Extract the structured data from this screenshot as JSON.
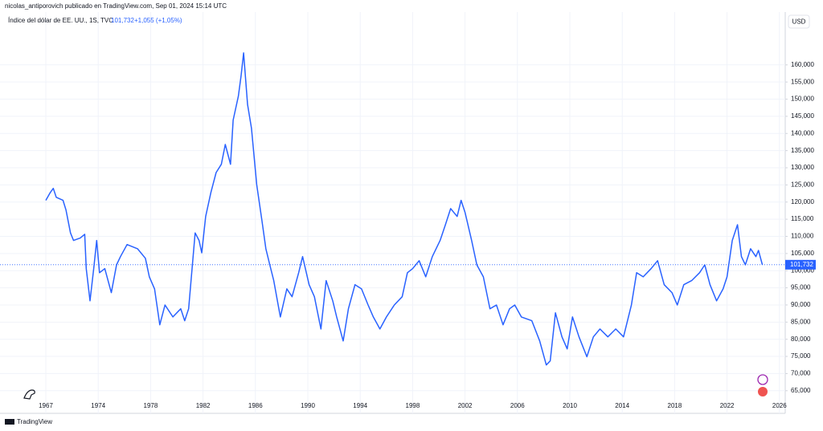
{
  "header": "nicolas_antiporovich publicado en TradingView.com, Sep 01, 2024 15:14 UTC",
  "footer": "TradingView",
  "chart_data": {
    "type": "line",
    "currency": "USD",
    "change": "+1,055 (+1,05%)",
    "last_value": {
      "value": 101.732,
      "label": "101,732"
    },
    "x": [
      1967.0,
      1967.6,
      1968.0,
      1968.4,
      1969.3,
      1969.7,
      1970.3,
      1970.7,
      1971.6,
      1972.2,
      1972.4,
      1972.9,
      1973.4,
      1973.8,
      1974.1,
      1974.5,
      1975.0,
      1975.4,
      1975.7,
      1976.2,
      1977.0,
      1977.6,
      1977.9,
      1978.3,
      1978.7,
      1979.1,
      1979.7,
      1980.3,
      1980.6,
      1980.9,
      1981.4,
      1981.7,
      1981.9,
      1982.2,
      1982.6,
      1983.0,
      1983.4,
      1983.7,
      1984.1,
      1984.3,
      1984.7,
      1984.9,
      1985.1,
      1985.4,
      1985.7,
      1986.1,
      1986.5,
      1986.8,
      1987.1,
      1987.4,
      1987.9,
      1988.4,
      1988.8,
      1989.3,
      1989.6,
      1990.1,
      1990.5,
      1991.0,
      1991.4,
      1991.9,
      1992.2,
      1992.7,
      1993.1,
      1993.6,
      1994.1,
      1994.6,
      1995.0,
      1995.5,
      1996.0,
      1996.6,
      1997.2,
      1997.6,
      1998.0,
      1998.5,
      1999.0,
      1999.5,
      2000.1,
      2000.5,
      2000.9,
      2001.4,
      2001.7,
      2002.0,
      2002.5,
      2002.9,
      2003.4,
      2003.9,
      2004.4,
      2004.9,
      2005.4,
      2005.8,
      2006.3,
      2007.1,
      2007.7,
      2008.2,
      2008.5,
      2008.9,
      2009.4,
      2009.8,
      2010.2,
      2010.7,
      2011.3,
      2011.8,
      2012.3,
      2012.9,
      2013.5,
      2014.1,
      2014.7,
      2015.1,
      2015.6,
      2016.2,
      2016.7,
      2017.2,
      2017.8,
      2018.2,
      2018.7,
      2019.3,
      2019.9,
      2020.3,
      2020.7,
      2021.2,
      2021.7,
      2022.0,
      2022.4,
      2022.8,
      2023.1,
      2023.4,
      2023.8,
      2024.2,
      2024.4,
      2024.7
    ],
    "series": [
      {
        "name": "Índice del dólar de EE. UU., 1S, TVC",
        "color": "#2962ff",
        "values": [
          120.5,
          122.8,
          124,
          121.4,
          120.5,
          117.7,
          111,
          108.8,
          109.5,
          110.6,
          100.6,
          91.2,
          100.6,
          108.8,
          99.4,
          100.6,
          93.6,
          101.7,
          104.1,
          107.6,
          106.4,
          103.6,
          98.2,
          94.7,
          84.2,
          90,
          86.5,
          88.9,
          85.4,
          88.9,
          111,
          108.8,
          105.2,
          115.8,
          122.8,
          128.6,
          131,
          136.8,
          131,
          143.9,
          150.9,
          156.7,
          163.5,
          148.5,
          141.5,
          125.1,
          114.6,
          106.4,
          101.7,
          97.1,
          86.5,
          94.7,
          92.4,
          99.4,
          104.1,
          95.9,
          92.4,
          83,
          97.1,
          91.2,
          86.5,
          79.5,
          88.9,
          95.9,
          94.7,
          90,
          86.5,
          83,
          86.5,
          90,
          92.4,
          99.4,
          100.6,
          102.9,
          98.2,
          104.1,
          108.8,
          113.4,
          118.1,
          115.8,
          120.5,
          117,
          108.8,
          101.7,
          98.2,
          88.9,
          90,
          84.2,
          88.9,
          90,
          86.5,
          85.4,
          79.5,
          72.5,
          73.7,
          87.7,
          80.7,
          77.2,
          86.5,
          80.7,
          74.9,
          80.7,
          83,
          80.7,
          83,
          80.7,
          90,
          99.4,
          98.2,
          100.6,
          102.9,
          95.9,
          93.6,
          90,
          95.9,
          97.1,
          99.4,
          101.7,
          95.9,
          91.2,
          94.7,
          98.2,
          108.8,
          113.4,
          104.1,
          101.7,
          106.4,
          104.1,
          105.9,
          101.7
        ]
      }
    ],
    "xticks": [
      1967,
      1974,
      1978,
      1982,
      1986,
      1990,
      1994,
      1998,
      2002,
      2006,
      2010,
      2014,
      2018,
      2022,
      2026
    ],
    "ylim": [
      58.4,
      175.4
    ],
    "yticks": [
      {
        "value": 65,
        "label": "65,000"
      },
      {
        "value": 70,
        "label": "70,000"
      },
      {
        "value": 75,
        "label": "75,000"
      },
      {
        "value": 80,
        "label": "80,000"
      },
      {
        "value": 85,
        "label": "85,000"
      },
      {
        "value": 90,
        "label": "90,000"
      },
      {
        "value": 95,
        "label": "95,000"
      },
      {
        "value": 100,
        "label": "100,000"
      },
      {
        "value": 105,
        "label": "105,000"
      },
      {
        "value": 110,
        "label": "110,000"
      },
      {
        "value": 115,
        "label": "115,000"
      },
      {
        "value": 120,
        "label": "120,000"
      },
      {
        "value": 125,
        "label": "125,000"
      },
      {
        "value": 130,
        "label": "130,000"
      },
      {
        "value": 135,
        "label": "135,000"
      },
      {
        "value": 140,
        "label": "140,000"
      },
      {
        "value": 145,
        "label": "145,000"
      },
      {
        "value": 150,
        "label": "150,000"
      },
      {
        "value": 155,
        "label": "155,000"
      },
      {
        "value": 160,
        "label": "160,000"
      }
    ],
    "grid": true
  }
}
